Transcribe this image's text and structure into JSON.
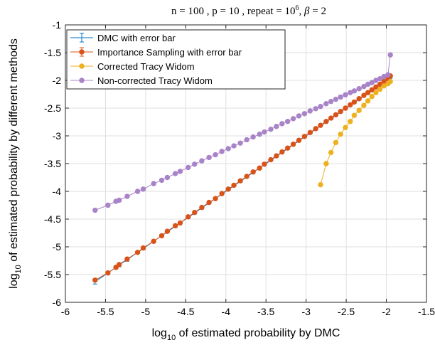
{
  "chart_data": {
    "type": "line",
    "title": {
      "parts": [
        {
          "t": "n = 100 , p = 10 , repeat = 10"
        },
        {
          "t": "6",
          "sup": true
        },
        {
          "t": ", "
        },
        {
          "t": "β",
          "italic": true
        },
        {
          "t": " = 2"
        }
      ]
    },
    "xlabel": {
      "pre": "log",
      "sub": "10",
      "post": " of estimated probability by DMC"
    },
    "ylabel": {
      "pre": "log",
      "sub": "10",
      "post": " of estimated probability by different methods"
    },
    "xlim": [
      -6,
      -1.5
    ],
    "ylim": [
      -6,
      -1
    ],
    "xticks": [
      -6,
      -5.5,
      -5,
      -4.5,
      -4,
      -3.5,
      -3,
      -2.5,
      -2,
      -1.5
    ],
    "xtick_labels": [
      "-6",
      "-5.5",
      "-5",
      "-4.5",
      "-4",
      "-3.5",
      "-3",
      "-2.5",
      "-2",
      "-1.5"
    ],
    "yticks": [
      -6,
      -5.5,
      -5,
      -4.5,
      -4,
      -3.5,
      -3,
      -2.5,
      -2,
      -1.5,
      -1
    ],
    "ytick_labels": [
      "-6",
      "-5.5",
      "-5",
      "-4.5",
      "-4",
      "-3.5",
      "-3",
      "-2.5",
      "-2",
      "-1.5",
      "-1"
    ],
    "grid": true,
    "legend_position": "top-left",
    "x": [
      -5.63,
      -5.47,
      -5.37,
      -5.33,
      -5.23,
      -5.1,
      -5.03,
      -4.9,
      -4.8,
      -4.73,
      -4.63,
      -4.57,
      -4.47,
      -4.39,
      -4.3,
      -4.21,
      -4.13,
      -4.05,
      -3.97,
      -3.9,
      -3.82,
      -3.74,
      -3.66,
      -3.58,
      -3.52,
      -3.44,
      -3.37,
      -3.3,
      -3.23,
      -3.16,
      -3.09,
      -3.02,
      -2.95,
      -2.88,
      -2.82,
      -2.75,
      -2.69,
      -2.63,
      -2.57,
      -2.51,
      -2.45,
      -2.4,
      -2.34,
      -2.28,
      -2.23,
      -2.18,
      -2.13,
      -2.08,
      -2.03,
      -1.98,
      -1.95
    ],
    "series": [
      {
        "name": "DMC with error bar",
        "color": "#0072BD",
        "marker": "none",
        "errorbar": true,
        "error": [
          0.04,
          0.03,
          0.03,
          0.03,
          0.03,
          0.025,
          0.025,
          0.025,
          0.025,
          0.02,
          0.02,
          0.02,
          0.02,
          0.02,
          0.02,
          0.015,
          0.015,
          0.015,
          0.015,
          0.015,
          0.015,
          0.015,
          0.015,
          0.015,
          0.015,
          0.015,
          0.015,
          0.015,
          0.015,
          0.015,
          0.015,
          0.015,
          0.015,
          0.015,
          0.015,
          0.015,
          0.015,
          0.015,
          0.015,
          0.015,
          0.015,
          0.015,
          0.015,
          0.015,
          0.015,
          0.015,
          0.015,
          0.015,
          0.015,
          0.015,
          0.015
        ],
        "values": [
          -5.63,
          -5.47,
          -5.37,
          -5.33,
          -5.23,
          -5.1,
          -5.03,
          -4.9,
          -4.8,
          -4.73,
          -4.63,
          -4.57,
          -4.47,
          -4.39,
          -4.3,
          -4.21,
          -4.13,
          -4.05,
          -3.97,
          -3.9,
          -3.82,
          -3.74,
          -3.66,
          -3.58,
          -3.52,
          -3.44,
          -3.37,
          -3.3,
          -3.23,
          -3.16,
          -3.09,
          -3.02,
          -2.95,
          -2.88,
          -2.82,
          -2.75,
          -2.69,
          -2.63,
          -2.57,
          -2.51,
          -2.45,
          -2.4,
          -2.34,
          -2.28,
          -2.23,
          -2.18,
          -2.13,
          -2.08,
          -2.03,
          -1.98,
          -1.95
        ]
      },
      {
        "name": "Importance Sampling with error bar",
        "color": "#D95319",
        "marker": "dot",
        "errorbar": true,
        "error": [
          0.02,
          0.015,
          0.015,
          0.015,
          0.015,
          0.015,
          0.015,
          0.015,
          0.015,
          0.015,
          0.015,
          0.015,
          0.015,
          0.015,
          0.015,
          0.015,
          0.015,
          0.015,
          0.015,
          0.015,
          0.015,
          0.015,
          0.015,
          0.015,
          0.015,
          0.015,
          0.015,
          0.015,
          0.015,
          0.015,
          0.015,
          0.015,
          0.015,
          0.015,
          0.015,
          0.015,
          0.015,
          0.015,
          0.015,
          0.015,
          0.015,
          0.015,
          0.015,
          0.015,
          0.015,
          0.015,
          0.015,
          0.015,
          0.015,
          0.015,
          0.02
        ],
        "values": [
          -5.6,
          -5.47,
          -5.37,
          -5.32,
          -5.22,
          -5.1,
          -5.02,
          -4.9,
          -4.8,
          -4.72,
          -4.62,
          -4.57,
          -4.46,
          -4.38,
          -4.29,
          -4.2,
          -4.13,
          -4.04,
          -3.96,
          -3.89,
          -3.81,
          -3.73,
          -3.65,
          -3.58,
          -3.51,
          -3.43,
          -3.36,
          -3.29,
          -3.22,
          -3.15,
          -3.08,
          -3.01,
          -2.94,
          -2.87,
          -2.81,
          -2.74,
          -2.68,
          -2.62,
          -2.56,
          -2.5,
          -2.44,
          -2.39,
          -2.33,
          -2.27,
          -2.22,
          -2.17,
          -2.12,
          -2.07,
          -2.02,
          -1.97,
          -1.92
        ]
      },
      {
        "name": "Corrected Tracy Widom",
        "color": "#EDB120",
        "marker": "dot",
        "errorbar": false,
        "x": [
          -2.82,
          -2.75,
          -2.69,
          -2.63,
          -2.57,
          -2.51,
          -2.45,
          -2.4,
          -2.34,
          -2.28,
          -2.23,
          -2.18,
          -2.13,
          -2.08,
          -2.03,
          -1.98,
          -1.95
        ],
        "values": [
          -3.88,
          -3.5,
          -3.3,
          -3.12,
          -2.97,
          -2.85,
          -2.74,
          -2.63,
          -2.54,
          -2.45,
          -2.37,
          -2.29,
          -2.22,
          -2.16,
          -2.1,
          -2.06,
          -2.02
        ]
      },
      {
        "name": "Non-corrected Tracy Widom",
        "color": "#A883C8",
        "marker": "dot",
        "errorbar": false,
        "x": [
          -5.63,
          -5.47,
          -5.37,
          -5.33,
          -5.23,
          -5.1,
          -5.03,
          -4.9,
          -4.8,
          -4.73,
          -4.63,
          -4.57,
          -4.47,
          -4.39,
          -4.3,
          -4.21,
          -4.13,
          -4.05,
          -3.97,
          -3.9,
          -3.82,
          -3.74,
          -3.66,
          -3.58,
          -3.52,
          -3.44,
          -3.37,
          -3.3,
          -3.23,
          -3.16,
          -3.09,
          -3.02,
          -2.95,
          -2.88,
          -2.82,
          -2.75,
          -2.69,
          -2.63,
          -2.57,
          -2.51,
          -2.45,
          -2.4,
          -2.34,
          -2.28,
          -2.23,
          -2.18,
          -2.13,
          -2.08,
          -2.03,
          -1.98,
          -1.95
        ],
        "values": [
          -4.34,
          -4.25,
          -4.18,
          -4.16,
          -4.09,
          -4.0,
          -3.96,
          -3.86,
          -3.8,
          -3.75,
          -3.68,
          -3.64,
          -3.57,
          -3.51,
          -3.45,
          -3.39,
          -3.34,
          -3.28,
          -3.23,
          -3.18,
          -3.13,
          -3.07,
          -3.02,
          -2.97,
          -2.93,
          -2.88,
          -2.83,
          -2.78,
          -2.74,
          -2.69,
          -2.64,
          -2.6,
          -2.55,
          -2.51,
          -2.47,
          -2.42,
          -2.38,
          -2.34,
          -2.3,
          -2.26,
          -2.22,
          -2.19,
          -2.15,
          -2.11,
          -2.07,
          -2.04,
          -2.0,
          -1.97,
          -1.93,
          -1.9,
          -1.54
        ]
      }
    ]
  }
}
